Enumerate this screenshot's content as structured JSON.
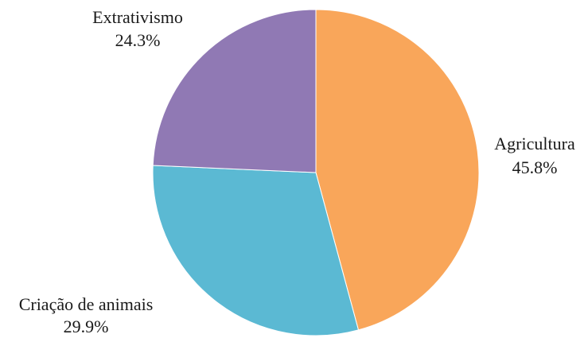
{
  "chart_data": {
    "type": "pie",
    "title": "",
    "slices": [
      {
        "label": "Agricultura",
        "value": 45.8,
        "value_label": "45.8%",
        "color": "#F9A65A"
      },
      {
        "label": "Criação de animais",
        "value": 29.9,
        "value_label": "29.9%",
        "color": "#5BB9D3"
      },
      {
        "label": "Extrativismo",
        "value": 24.3,
        "value_label": "24.3%",
        "color": "#9079B4"
      }
    ],
    "start_angle": "12 o'clock",
    "direction": "clockwise",
    "legend": "none"
  }
}
